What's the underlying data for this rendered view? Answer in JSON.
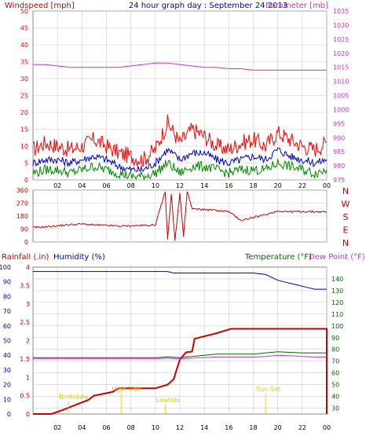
{
  "header": {
    "left_label": "Windspeed [mph]",
    "title": "24 hour graph day : September 24 2013",
    "right_label": "Barometer [mb]"
  },
  "colors": {
    "wind_gust": "#ff0000",
    "wind_avg": "#0000cc",
    "wind_low": "#008800",
    "barometer": "#cc33cc",
    "direction": "#cc0000",
    "rain": "#cc0000",
    "humidity": "#0000aa",
    "temperature": "#006600",
    "dewpoint": "#cc33cc",
    "annotation": "#ddcc00",
    "grid": "#cccccc"
  },
  "x_axis": {
    "ticks": [
      "02",
      "04",
      "06",
      "08",
      "10",
      "12",
      "14",
      "16",
      "18",
      "20",
      "22",
      "00"
    ],
    "range_hours": [
      0,
      24
    ]
  },
  "chart_data": [
    {
      "type": "line",
      "panel": "wind_barometer",
      "ylim_left": [
        0,
        50
      ],
      "left_ticks": [
        "0",
        "5",
        "10",
        "15",
        "20",
        "25",
        "30",
        "35",
        "40",
        "45",
        "50"
      ],
      "ylim_right": [
        975,
        1035
      ],
      "right_ticks": [
        "975",
        "980",
        "985",
        "990",
        "995",
        "1000",
        "1005",
        "1010",
        "1015",
        "1020",
        "1025",
        "1030",
        "1035"
      ],
      "x_hours": [
        0,
        1,
        2,
        3,
        4,
        5,
        6,
        7,
        8,
        9,
        10,
        11,
        12,
        13,
        14,
        15,
        16,
        17,
        18,
        19,
        20,
        21,
        22,
        23,
        24
      ],
      "series": [
        {
          "key": "gust",
          "axis": "left",
          "values": [
            9,
            11,
            10,
            9,
            10,
            12,
            10,
            8,
            7,
            6,
            9,
            17,
            11,
            15,
            13,
            10,
            9,
            11,
            12,
            10,
            14,
            12,
            10,
            9,
            11
          ]
        },
        {
          "key": "avg",
          "axis": "left",
          "values": [
            5,
            6,
            6,
            5,
            6,
            7,
            6,
            4,
            3,
            3,
            5,
            9,
            6,
            8,
            8,
            6,
            5,
            6,
            7,
            6,
            9,
            7,
            6,
            5,
            6
          ]
        },
        {
          "key": "low",
          "axis": "left",
          "values": [
            2,
            3,
            3,
            2,
            3,
            4,
            3,
            2,
            1,
            1,
            2,
            5,
            2,
            4,
            4,
            3,
            2,
            3,
            3,
            3,
            5,
            4,
            3,
            2,
            3
          ]
        },
        {
          "key": "barometer",
          "axis": "right",
          "values": [
            1016,
            1016,
            1015.5,
            1015,
            1015,
            1015,
            1015,
            1015,
            1015.5,
            1016,
            1016.5,
            1016.5,
            1016,
            1015.5,
            1015,
            1015,
            1014.5,
            1014.5,
            1014,
            1014,
            1014,
            1014,
            1014,
            1014,
            1014
          ]
        }
      ]
    },
    {
      "type": "line",
      "panel": "direction",
      "ylim": [
        0,
        360
      ],
      "ticks": [
        "0",
        "90",
        "180",
        "270",
        "360"
      ],
      "compass": [
        "N",
        "W",
        "S",
        "E",
        "N"
      ],
      "x_hours": [
        0,
        1,
        2,
        3,
        4,
        5,
        6,
        7,
        8,
        9,
        10,
        10.8,
        11,
        11.3,
        11.6,
        12,
        12.3,
        12.6,
        13,
        14,
        15,
        16,
        17,
        18,
        19,
        20,
        21,
        22,
        23,
        24
      ],
      "values": [
        100,
        105,
        112,
        120,
        125,
        118,
        115,
        110,
        112,
        115,
        118,
        350,
        20,
        330,
        10,
        340,
        40,
        350,
        230,
        225,
        220,
        210,
        150,
        170,
        190,
        215,
        210,
        212,
        210,
        208
      ]
    },
    {
      "type": "line",
      "panel": "rain_hum_temp",
      "left_labels": {
        "rain": "Rainfall (.in)",
        "humidity": "Humidity (%)"
      },
      "right_labels": {
        "temperature": "Temperature (°F)",
        "dewpoint": "Dew Point (°F)"
      },
      "rain_ticks": [
        "0",
        "0.5",
        "1",
        "1.5",
        "2",
        "2.5",
        "3",
        "3.5",
        "4"
      ],
      "ylim_rain": [
        0,
        4
      ],
      "hum_ticks": [
        "0",
        "10",
        "20",
        "30",
        "40",
        "50",
        "60",
        "70",
        "80",
        "90",
        "100"
      ],
      "ylim_humidity": [
        0,
        100
      ],
      "temp_ticks": [
        "30",
        "40",
        "50",
        "60",
        "70",
        "80",
        "90",
        "100",
        "110",
        "120",
        "130",
        "140"
      ],
      "ylim_temp": [
        25,
        150
      ],
      "series": [
        {
          "key": "rain",
          "axis": "rain",
          "x": [
            0,
            1.5,
            2.5,
            3.5,
            4.5,
            5,
            6.5,
            7,
            8.5,
            10,
            11,
            11.5,
            11.8,
            12,
            12.5,
            13,
            13.2,
            15,
            16.2,
            24,
            24
          ],
          "values": [
            0,
            0,
            0.12,
            0.25,
            0.38,
            0.5,
            0.6,
            0.7,
            0.7,
            0.7,
            0.8,
            0.95,
            1.28,
            1.48,
            1.68,
            1.7,
            2.05,
            2.2,
            2.32,
            2.32,
            0
          ]
        },
        {
          "key": "humidity",
          "axis": "humidity",
          "x": [
            0,
            2,
            4,
            6,
            8,
            10,
            11,
            11.5,
            12,
            13,
            14,
            15,
            16,
            17,
            18,
            19,
            19.5,
            20,
            20.5,
            21,
            21.5,
            22,
            22.5,
            23,
            24
          ],
          "values": [
            97,
            97,
            97,
            97,
            97,
            97,
            97,
            96,
            96,
            96,
            96,
            96,
            96,
            96,
            96,
            95,
            93,
            91,
            90,
            89,
            88,
            87,
            86,
            85,
            85
          ]
        },
        {
          "key": "temperature",
          "axis": "temp",
          "x": [
            0,
            2,
            4,
            6,
            8,
            10,
            11,
            12,
            13,
            14,
            15,
            16,
            17,
            18,
            19,
            20,
            21,
            22,
            23,
            24
          ],
          "values": [
            73,
            73,
            73,
            73,
            73,
            73,
            73.5,
            73,
            74,
            75,
            76,
            76,
            76,
            76,
            77,
            78,
            77.5,
            77,
            77,
            77
          ]
        },
        {
          "key": "dewpoint",
          "axis": "temp",
          "x": [
            0,
            2,
            4,
            6,
            8,
            10,
            11,
            12,
            13,
            14,
            15,
            16,
            17,
            18,
            19,
            20,
            21,
            22,
            23,
            24
          ],
          "values": [
            72,
            72,
            72,
            72,
            72,
            72,
            72.5,
            72,
            72.5,
            73,
            73.5,
            73.5,
            73.5,
            73.5,
            74,
            75,
            74.5,
            74,
            73.5,
            73.5
          ]
        }
      ],
      "annotations": [
        {
          "text": "Birthdate",
          "hour": 2.9
        },
        {
          "text": "High Tide",
          "hour": 7.2
        },
        {
          "text": "Lowtide",
          "hour": 10.8
        },
        {
          "text": "Sun Set",
          "hour": 19.0
        }
      ]
    }
  ]
}
